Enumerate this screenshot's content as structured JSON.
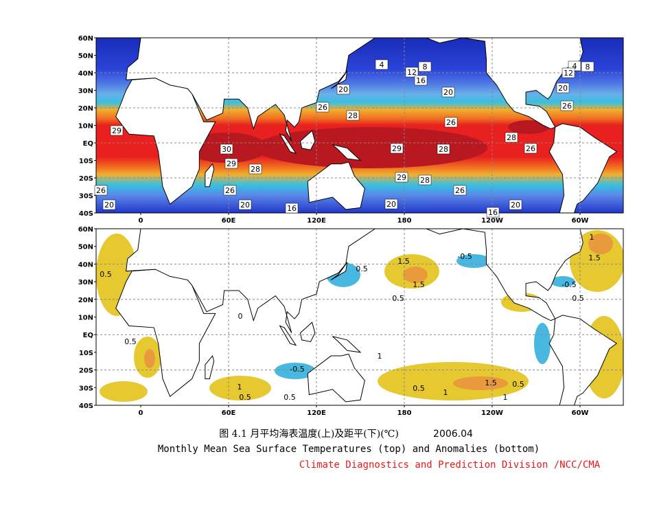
{
  "top_panel": {
    "lat_labels": [
      "60N",
      "50N",
      "40N",
      "30N",
      "20N",
      "10N",
      "EQ",
      "10S",
      "20S",
      "30S",
      "40S"
    ],
    "lon_labels": [
      "0",
      "60E",
      "120E",
      "180",
      "120W",
      "60W"
    ],
    "contour_labels": [
      "4",
      "12",
      "8",
      "16",
      "20",
      "20",
      "4",
      "12",
      "8",
      "20",
      "26",
      "28",
      "26",
      "26",
      "29",
      "28",
      "30",
      "29",
      "28",
      "26",
      "29",
      "28",
      "29",
      "28",
      "26",
      "26",
      "26",
      "20",
      "20",
      "16",
      "20",
      "20",
      "16"
    ]
  },
  "bottom_panel": {
    "lat_labels": [
      "60N",
      "50N",
      "40N",
      "30N",
      "20N",
      "10N",
      "EQ",
      "10S",
      "20S",
      "30S",
      "40S"
    ],
    "lon_labels": [
      "0",
      "60E",
      "120E",
      "180",
      "120W",
      "60W"
    ],
    "contour_labels": [
      "1",
      "1.5",
      "-0.5",
      "1.5",
      "0.5",
      "0.5",
      "1.5",
      "-0.5",
      "0.5",
      "0.5",
      "0",
      "0.5",
      "1",
      "-0.5",
      "1",
      "1.5",
      "0.5",
      "0.5",
      "0.5",
      "0.5",
      "1",
      "1"
    ]
  },
  "caption": {
    "title_cn": "图 4.1  月平均海表温度(上)及距平(下)(℃)",
    "date": "2006.04",
    "title_en": "Monthly Mean Sea Surface Temperatures (top)  and Anomalies (bottom)",
    "credit": "Climate Diagnostics and Prediction Division /NCC/CMA"
  }
}
